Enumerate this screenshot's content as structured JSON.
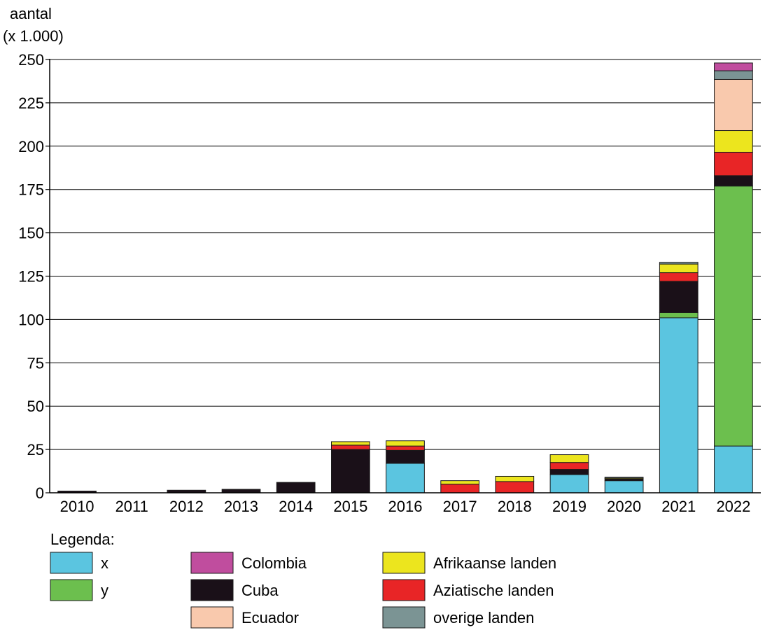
{
  "chart_data": {
    "type": "bar",
    "stacked": true,
    "title": "",
    "ylabel_lines": [
      "aantal",
      "(x 1.000)"
    ],
    "xlabel": "",
    "ylim": [
      0,
      250
    ],
    "yticks": [
      0,
      25,
      50,
      75,
      100,
      125,
      150,
      175,
      200,
      225,
      250
    ],
    "grid": true,
    "categories": [
      "2010",
      "2011",
      "2012",
      "2013",
      "2014",
      "2015",
      "2016",
      "2017",
      "2018",
      "2019",
      "2020",
      "2021",
      "2022"
    ],
    "series": [
      {
        "name": "x",
        "color": "#5bc5e0",
        "values": [
          0,
          0,
          0,
          0,
          0,
          0,
          17,
          0,
          0,
          10.5,
          7,
          101,
          27
        ]
      },
      {
        "name": "y",
        "color": "#6cbf4e",
        "values": [
          0,
          0,
          0,
          0,
          0,
          0,
          0,
          0,
          0,
          0,
          0,
          3,
          150
        ]
      },
      {
        "name": "Cuba",
        "color": "#1a1018",
        "values": [
          1,
          0,
          1.5,
          2,
          6,
          25,
          7.5,
          0,
          0,
          3,
          1,
          18,
          6
        ]
      },
      {
        "name": "Aziatische landen",
        "color": "#e82526",
        "values": [
          0,
          0,
          0,
          0,
          0,
          2.5,
          2.5,
          5,
          6.5,
          4,
          0,
          5,
          13.5
        ]
      },
      {
        "name": "Afrikaanse landen",
        "color": "#ece51e",
        "values": [
          0,
          0,
          0,
          0,
          0,
          2,
          3,
          2,
          3,
          4.5,
          0.5,
          5,
          12.5
        ]
      },
      {
        "name": "Ecuador",
        "color": "#f9c9ad",
        "values": [
          0,
          0,
          0,
          0,
          0,
          0,
          0,
          0,
          0,
          0,
          0,
          0,
          29.5
        ]
      },
      {
        "name": "overige landen",
        "color": "#7b9494",
        "values": [
          0,
          0,
          0,
          0,
          0,
          0,
          0,
          0,
          0,
          0,
          0.5,
          1,
          5
        ]
      },
      {
        "name": "Colombia",
        "color": "#c04d9e",
        "values": [
          0,
          0,
          0,
          0,
          0,
          0,
          0,
          0,
          0,
          0,
          0,
          0,
          4.5
        ]
      }
    ],
    "legend": {
      "title": "Legenda:",
      "placement": "bottom",
      "columns": [
        [
          "x",
          "y"
        ],
        [
          "Colombia",
          "Cuba",
          "Ecuador"
        ],
        [
          "Afrikaanse landen",
          "Aziatische landen",
          "overige landen"
        ]
      ]
    }
  }
}
